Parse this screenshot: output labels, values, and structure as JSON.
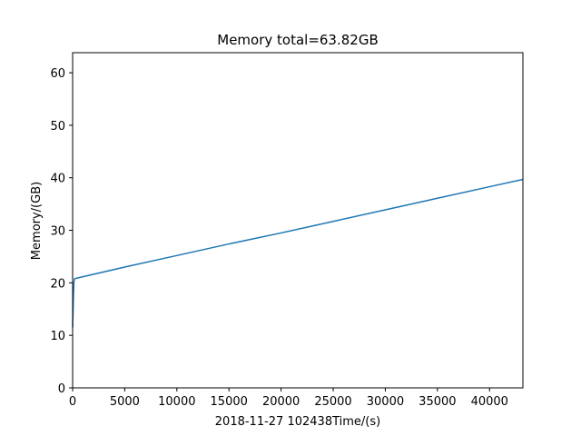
{
  "chart_data": {
    "type": "line",
    "title": "Memory total=63.82GB",
    "xlabel": "2018-11-27 102438Time/(s)",
    "ylabel": "Memory/(GB)",
    "xlim": [
      0,
      43200
    ],
    "ylim": [
      0,
      63.82
    ],
    "grid": false,
    "xticks": [
      0,
      5000,
      10000,
      15000,
      20000,
      25000,
      30000,
      35000,
      40000
    ],
    "yticks": [
      0,
      10,
      20,
      30,
      40,
      50,
      60
    ],
    "series": [
      {
        "color": "#1f77b4",
        "x": [
          0,
          40,
          80,
          120,
          160,
          200,
          5000,
          10000,
          15000,
          20000,
          25000,
          30000,
          35000,
          40000,
          43200
        ],
        "y": [
          11.5,
          14.5,
          17.5,
          20.0,
          20.6,
          20.8,
          23.0,
          25.2,
          27.4,
          29.5,
          31.7,
          33.9,
          36.1,
          38.3,
          39.7
        ]
      }
    ]
  }
}
